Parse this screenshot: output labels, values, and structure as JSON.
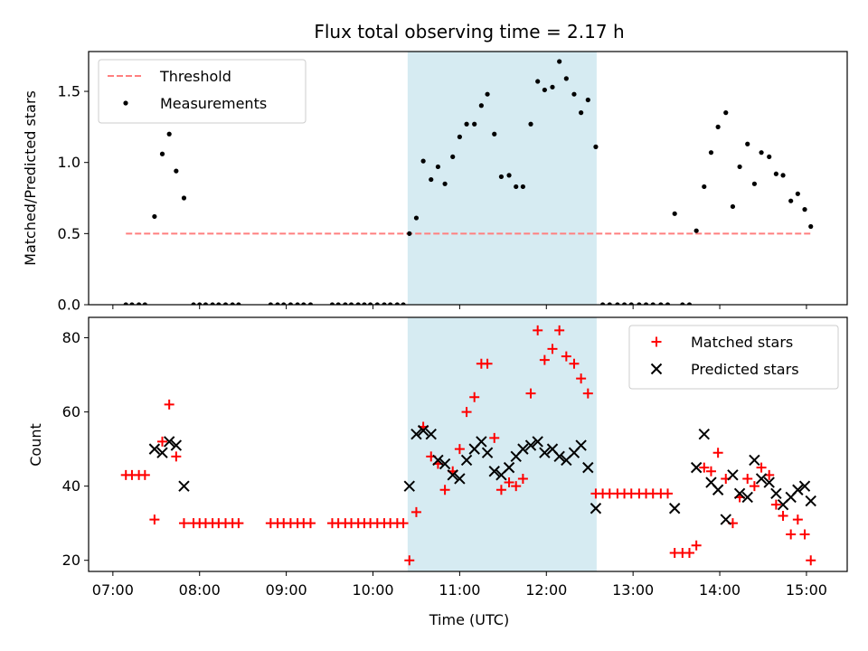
{
  "title": "Flux total observing time = 2.17 h",
  "xlabel": "Time (UTC)",
  "x_ticks": [
    "07:00",
    "08:00",
    "09:00",
    "10:00",
    "11:00",
    "12:00",
    "13:00",
    "14:00",
    "15:00"
  ],
  "x_tick_hours": [
    7,
    8,
    9,
    10,
    11,
    12,
    13,
    14,
    15
  ],
  "xlim": [
    6.72,
    15.47
  ],
  "colors": {
    "threshold": "#ff7f7f",
    "measurements": "#000000",
    "matched": "#ff0000",
    "predicted": "#000000",
    "span_fill": "#add8e6"
  },
  "chart_data": [
    {
      "type": "scatter",
      "ylabel": "Matched/Predicted stars",
      "ylim": [
        0,
        1.78
      ],
      "y_ticks": [
        0.0,
        0.5,
        1.0,
        1.5
      ],
      "y_tick_labels": [
        "0.0",
        "0.5",
        "1.0",
        "1.5"
      ],
      "highlight_span": {
        "start": 10.4,
        "end": 12.58
      },
      "legend_position": "top-left",
      "threshold": {
        "name": "Threshold",
        "y": 0.5,
        "x_start": 7.15,
        "x_end": 15.05
      },
      "series": [
        {
          "name": "Measurements",
          "points": [
            [
              7.15,
              0
            ],
            [
              7.22,
              0
            ],
            [
              7.3,
              0
            ],
            [
              7.37,
              0
            ],
            [
              7.48,
              0.62
            ],
            [
              7.57,
              1.06
            ],
            [
              7.65,
              1.2
            ],
            [
              7.73,
              0.94
            ],
            [
              7.82,
              0.75
            ],
            [
              7.93,
              0
            ],
            [
              8.0,
              0
            ],
            [
              8.07,
              0
            ],
            [
              8.15,
              0
            ],
            [
              8.22,
              0
            ],
            [
              8.3,
              0
            ],
            [
              8.38,
              0
            ],
            [
              8.45,
              0
            ],
            [
              8.82,
              0
            ],
            [
              8.9,
              0
            ],
            [
              8.97,
              0
            ],
            [
              9.05,
              0
            ],
            [
              9.13,
              0
            ],
            [
              9.2,
              0
            ],
            [
              9.28,
              0
            ],
            [
              9.53,
              0
            ],
            [
              9.6,
              0
            ],
            [
              9.68,
              0
            ],
            [
              9.75,
              0
            ],
            [
              9.83,
              0
            ],
            [
              9.9,
              0
            ],
            [
              9.97,
              0
            ],
            [
              10.05,
              0
            ],
            [
              10.13,
              0
            ],
            [
              10.2,
              0
            ],
            [
              10.28,
              0
            ],
            [
              10.35,
              0
            ],
            [
              10.42,
              0.5
            ],
            [
              10.5,
              0.61
            ],
            [
              10.58,
              1.01
            ],
            [
              10.67,
              0.88
            ],
            [
              10.75,
              0.97
            ],
            [
              10.83,
              0.85
            ],
            [
              10.92,
              1.04
            ],
            [
              11.0,
              1.18
            ],
            [
              11.08,
              1.27
            ],
            [
              11.17,
              1.27
            ],
            [
              11.25,
              1.4
            ],
            [
              11.32,
              1.48
            ],
            [
              11.4,
              1.2
            ],
            [
              11.48,
              0.9
            ],
            [
              11.57,
              0.91
            ],
            [
              11.65,
              0.83
            ],
            [
              11.73,
              0.83
            ],
            [
              11.82,
              1.27
            ],
            [
              11.9,
              1.57
            ],
            [
              11.98,
              1.51
            ],
            [
              12.07,
              1.53
            ],
            [
              12.15,
              1.71
            ],
            [
              12.23,
              1.59
            ],
            [
              12.32,
              1.48
            ],
            [
              12.4,
              1.35
            ],
            [
              12.48,
              1.44
            ],
            [
              12.57,
              1.11
            ],
            [
              12.65,
              0
            ],
            [
              12.73,
              0
            ],
            [
              12.82,
              0
            ],
            [
              12.9,
              0
            ],
            [
              12.98,
              0
            ],
            [
              13.07,
              0
            ],
            [
              13.15,
              0
            ],
            [
              13.23,
              0
            ],
            [
              13.32,
              0
            ],
            [
              13.4,
              0
            ],
            [
              13.48,
              0.64
            ],
            [
              13.57,
              0
            ],
            [
              13.65,
              0
            ],
            [
              13.73,
              0.52
            ],
            [
              13.82,
              0.83
            ],
            [
              13.9,
              1.07
            ],
            [
              13.98,
              1.25
            ],
            [
              14.07,
              1.35
            ],
            [
              14.15,
              0.69
            ],
            [
              14.23,
              0.97
            ],
            [
              14.32,
              1.13
            ],
            [
              14.4,
              0.85
            ],
            [
              14.48,
              1.07
            ],
            [
              14.57,
              1.04
            ],
            [
              14.65,
              0.92
            ],
            [
              14.73,
              0.91
            ],
            [
              14.82,
              0.73
            ],
            [
              14.9,
              0.78
            ],
            [
              14.98,
              0.67
            ],
            [
              15.05,
              0.55
            ]
          ]
        }
      ]
    },
    {
      "type": "scatter",
      "ylabel": "Count",
      "ylim": [
        17,
        85.5
      ],
      "y_ticks": [
        20,
        40,
        60,
        80
      ],
      "y_tick_labels": [
        "20",
        "40",
        "60",
        "80"
      ],
      "highlight_span": {
        "start": 10.4,
        "end": 12.58
      },
      "legend_position": "top-right",
      "series": [
        {
          "name": "Matched stars",
          "marker": "plus",
          "points": [
            [
              7.15,
              43
            ],
            [
              7.22,
              43
            ],
            [
              7.3,
              43
            ],
            [
              7.37,
              43
            ],
            [
              7.48,
              31
            ],
            [
              7.57,
              52
            ],
            [
              7.65,
              62
            ],
            [
              7.73,
              48
            ],
            [
              7.82,
              30
            ],
            [
              7.93,
              30
            ],
            [
              8.0,
              30
            ],
            [
              8.07,
              30
            ],
            [
              8.15,
              30
            ],
            [
              8.22,
              30
            ],
            [
              8.3,
              30
            ],
            [
              8.38,
              30
            ],
            [
              8.45,
              30
            ],
            [
              8.82,
              30
            ],
            [
              8.9,
              30
            ],
            [
              8.97,
              30
            ],
            [
              9.05,
              30
            ],
            [
              9.13,
              30
            ],
            [
              9.2,
              30
            ],
            [
              9.28,
              30
            ],
            [
              9.53,
              30
            ],
            [
              9.6,
              30
            ],
            [
              9.68,
              30
            ],
            [
              9.75,
              30
            ],
            [
              9.83,
              30
            ],
            [
              9.9,
              30
            ],
            [
              9.97,
              30
            ],
            [
              10.05,
              30
            ],
            [
              10.13,
              30
            ],
            [
              10.2,
              30
            ],
            [
              10.28,
              30
            ],
            [
              10.35,
              30
            ],
            [
              10.42,
              20
            ],
            [
              10.5,
              33
            ],
            [
              10.58,
              56
            ],
            [
              10.67,
              48
            ],
            [
              10.75,
              46
            ],
            [
              10.83,
              39
            ],
            [
              10.92,
              44
            ],
            [
              11.0,
              50
            ],
            [
              11.08,
              60
            ],
            [
              11.17,
              64
            ],
            [
              11.25,
              73
            ],
            [
              11.32,
              73
            ],
            [
              11.4,
              53
            ],
            [
              11.48,
              39
            ],
            [
              11.57,
              41
            ],
            [
              11.65,
              40
            ],
            [
              11.73,
              42
            ],
            [
              11.82,
              65
            ],
            [
              11.9,
              82
            ],
            [
              11.98,
              74
            ],
            [
              12.07,
              77
            ],
            [
              12.15,
              82
            ],
            [
              12.23,
              75
            ],
            [
              12.32,
              73
            ],
            [
              12.4,
              69
            ],
            [
              12.48,
              65
            ],
            [
              12.57,
              38
            ],
            [
              12.65,
              38
            ],
            [
              12.73,
              38
            ],
            [
              12.82,
              38
            ],
            [
              12.9,
              38
            ],
            [
              12.98,
              38
            ],
            [
              13.07,
              38
            ],
            [
              13.15,
              38
            ],
            [
              13.23,
              38
            ],
            [
              13.32,
              38
            ],
            [
              13.4,
              38
            ],
            [
              13.48,
              22
            ],
            [
              13.57,
              22
            ],
            [
              13.65,
              22
            ],
            [
              13.73,
              24
            ],
            [
              13.82,
              45
            ],
            [
              13.9,
              44
            ],
            [
              13.98,
              49
            ],
            [
              14.07,
              42
            ],
            [
              14.15,
              30
            ],
            [
              14.23,
              37
            ],
            [
              14.32,
              42
            ],
            [
              14.4,
              40
            ],
            [
              14.48,
              45
            ],
            [
              14.57,
              43
            ],
            [
              14.65,
              35
            ],
            [
              14.73,
              32
            ],
            [
              14.82,
              27
            ],
            [
              14.9,
              31
            ],
            [
              14.98,
              27
            ],
            [
              15.05,
              20
            ]
          ]
        },
        {
          "name": "Predicted stars",
          "marker": "x",
          "points": [
            [
              7.48,
              50
            ],
            [
              7.57,
              49
            ],
            [
              7.65,
              52
            ],
            [
              7.73,
              51
            ],
            [
              7.82,
              40
            ],
            [
              10.42,
              40
            ],
            [
              10.5,
              54
            ],
            [
              10.58,
              55
            ],
            [
              10.67,
              54
            ],
            [
              10.75,
              47
            ],
            [
              10.83,
              46
            ],
            [
              10.92,
              43
            ],
            [
              11.0,
              42
            ],
            [
              11.08,
              47
            ],
            [
              11.17,
              50
            ],
            [
              11.25,
              52
            ],
            [
              11.32,
              49
            ],
            [
              11.4,
              44
            ],
            [
              11.48,
              43
            ],
            [
              11.57,
              45
            ],
            [
              11.65,
              48
            ],
            [
              11.73,
              50
            ],
            [
              11.82,
              51
            ],
            [
              11.9,
              52
            ],
            [
              11.98,
              49
            ],
            [
              12.07,
              50
            ],
            [
              12.15,
              48
            ],
            [
              12.23,
              47
            ],
            [
              12.32,
              49
            ],
            [
              12.4,
              51
            ],
            [
              12.48,
              45
            ],
            [
              12.57,
              34
            ],
            [
              13.48,
              34
            ],
            [
              13.73,
              45
            ],
            [
              13.82,
              54
            ],
            [
              13.9,
              41
            ],
            [
              13.98,
              39
            ],
            [
              14.07,
              31
            ],
            [
              14.15,
              43
            ],
            [
              14.23,
              38
            ],
            [
              14.32,
              37
            ],
            [
              14.4,
              47
            ],
            [
              14.48,
              42
            ],
            [
              14.57,
              41
            ],
            [
              14.65,
              38
            ],
            [
              14.73,
              35
            ],
            [
              14.82,
              37
            ],
            [
              14.9,
              39
            ],
            [
              14.98,
              40
            ],
            [
              15.05,
              36
            ]
          ]
        }
      ]
    }
  ]
}
